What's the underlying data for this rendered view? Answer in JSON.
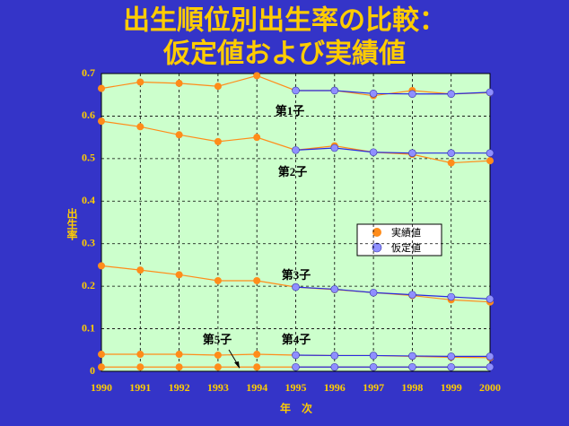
{
  "chart_data": {
    "type": "line",
    "title_lines": [
      "出生順位別出生率の比較：",
      "仮定値および実績値"
    ],
    "x_label": "年　次",
    "y_label": "出生率",
    "x": [
      1990,
      1991,
      1992,
      1993,
      1994,
      1995,
      1996,
      1997,
      1998,
      1999,
      2000
    ],
    "xlim": [
      1990,
      2000
    ],
    "xticks": [
      1990,
      1991,
      1992,
      1993,
      1994,
      1995,
      1996,
      1997,
      1998,
      1999,
      2000
    ],
    "ylim": [
      0,
      0.7
    ],
    "yticks": [
      0,
      0.1,
      0.2,
      0.3,
      0.4,
      0.5,
      0.6,
      0.7
    ],
    "grid": true,
    "legend": {
      "actual": "実績値",
      "assumed": "仮定値",
      "actual_color": "#ff8c1a",
      "assumed_color": "#8f8fff",
      "assumed_line_color": "#2a2ae0"
    },
    "series": [
      {
        "label": "第1子",
        "actual": [
          0.665,
          0.68,
          0.677,
          0.67,
          0.695,
          0.66,
          0.66,
          0.648,
          0.66,
          0.652,
          0.655
        ],
        "assumed": [
          null,
          null,
          null,
          null,
          null,
          0.66,
          0.66,
          0.653,
          0.652,
          0.652,
          0.656
        ]
      },
      {
        "label": "第2子",
        "actual": [
          0.588,
          0.575,
          0.556,
          0.54,
          0.55,
          0.52,
          0.53,
          0.515,
          0.51,
          0.49,
          0.495
        ],
        "assumed": [
          null,
          null,
          null,
          null,
          null,
          0.52,
          0.525,
          0.515,
          0.513,
          0.513,
          0.513
        ]
      },
      {
        "label": "第3子",
        "actual": [
          0.248,
          0.238,
          0.227,
          0.213,
          0.213,
          0.198,
          0.192,
          0.185,
          0.178,
          0.168,
          0.163
        ],
        "assumed": [
          null,
          null,
          null,
          null,
          null,
          0.198,
          0.193,
          0.185,
          0.18,
          0.175,
          0.17
        ]
      },
      {
        "label": "第4子",
        "actual": [
          0.04,
          0.04,
          0.04,
          0.038,
          0.04,
          0.038,
          0.037,
          0.037,
          0.035,
          0.033,
          0.032
        ],
        "assumed": [
          null,
          null,
          null,
          null,
          null,
          0.038,
          0.037,
          0.037,
          0.036,
          0.035,
          0.035
        ]
      },
      {
        "label": "第5子",
        "actual": [
          0.01,
          0.01,
          0.01,
          0.01,
          0.01,
          0.01,
          0.01,
          0.01,
          0.01,
          0.01,
          0.01
        ],
        "assumed": [
          null,
          null,
          null,
          null,
          null,
          0.01,
          0.01,
          0.01,
          0.01,
          0.01,
          0.01
        ]
      }
    ]
  }
}
